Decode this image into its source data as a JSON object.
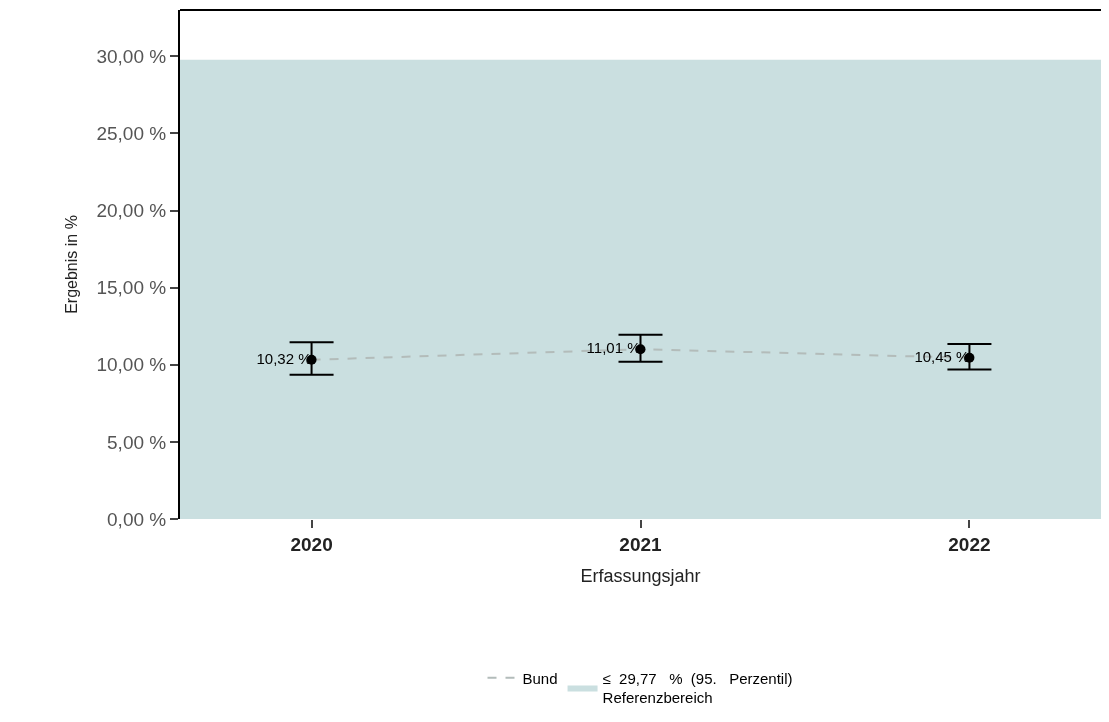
{
  "chart_data": {
    "type": "line",
    "xlabel": "Erfassungsjahr",
    "ylabel": "Ergebnis in %",
    "categories": [
      "2020",
      "2021",
      "2022"
    ],
    "series": [
      {
        "name": "Bund",
        "color": "#b3bcba",
        "values": [
          10.32,
          11.01,
          10.45
        ],
        "errors": [
          [
            9.35,
            11.46
          ],
          [
            10.19,
            11.95
          ],
          [
            9.7,
            11.35
          ]
        ],
        "value_labels": [
          "10,32 %",
          "11,01 %",
          "10,45 %"
        ]
      }
    ],
    "ylim": [
      0,
      33
    ],
    "yticks": [
      {
        "value": 0,
        "label": "0,00 %"
      },
      {
        "value": 5,
        "label": "5,00 %"
      },
      {
        "value": 10,
        "label": "10,00 %"
      },
      {
        "value": 15,
        "label": "15,00 %"
      },
      {
        "value": 20,
        "label": "20,00 %"
      },
      {
        "value": 25,
        "label": "25,00 %"
      },
      {
        "value": 30,
        "label": "30,00 %"
      }
    ],
    "bands": [
      {
        "axis": "y",
        "from": 0,
        "to": 29.77,
        "label": "≤  29,77   %  (95.   Perzentil)\nReferenzbereich",
        "color": "#cadfe0"
      }
    ],
    "line_style": "dashed",
    "marker": "circle",
    "legend": "bottom"
  }
}
